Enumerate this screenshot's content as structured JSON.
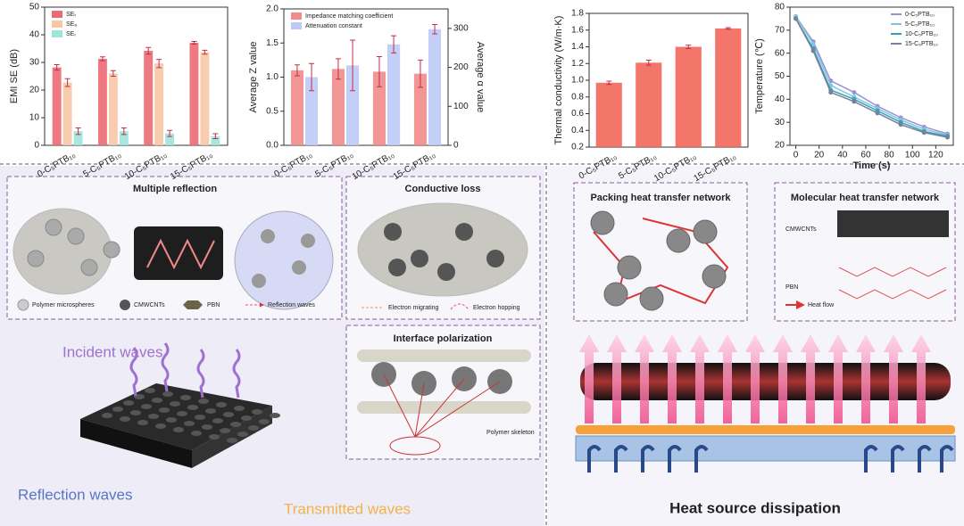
{
  "chart_data": [
    {
      "type": "bar",
      "y_label": "EMI SE (dB)",
      "categories": [
        "0-C₅PTB₁₀",
        "5-C₅PTB₁₀",
        "10-C₅PTB₁₀",
        "15-C₅PTB₁₀"
      ],
      "series": [
        {
          "name": "SEₜ",
          "color": "#ec6a73",
          "values": [
            28.2,
            31.3,
            34.2,
            37.1
          ],
          "errors": [
            1.0,
            0.7,
            1.2,
            0.5
          ]
        },
        {
          "name": "SEₐ",
          "color": "#f7c6a5",
          "values": [
            22.7,
            26.0,
            29.6,
            33.7
          ],
          "errors": [
            1.4,
            1.0,
            1.5,
            0.7
          ]
        },
        {
          "name": "SEᵣ",
          "color": "#9ee3dd",
          "values": [
            5.1,
            5.1,
            4.3,
            3.3
          ],
          "errors": [
            1.2,
            1.2,
            1.1,
            0.9
          ]
        }
      ],
      "ylim": [
        0,
        50
      ],
      "yticks": [
        0,
        10,
        20,
        30,
        40,
        50
      ],
      "legend": "upper left"
    },
    {
      "type": "bar",
      "y_label": "Average Z value",
      "y2_label": "Average α value",
      "categories": [
        "0-C₅PTB₁₀",
        "5-C₅PTB₁₀",
        "10-C₅PTB₁₀",
        "15-C₅PTB₁₀"
      ],
      "series": [
        {
          "name": "Impedance matching coefficient",
          "color": "#f28b8b",
          "values": [
            1.1,
            1.12,
            1.08,
            1.05
          ],
          "errors": [
            0.08,
            0.15,
            0.22,
            0.2
          ]
        },
        {
          "name": "Attenuation constant",
          "color": "#bccaf5",
          "axis": "y2",
          "values": [
            175,
            205,
            259,
            298
          ],
          "errors": [
            35,
            65,
            22,
            12
          ]
        }
      ],
      "ylim": [
        0,
        2.0
      ],
      "yticks": [
        {
          "value": 0,
          "label": "0.0"
        },
        0.5,
        {
          "value": 1,
          "label": "1.0"
        },
        1.5,
        {
          "value": 2,
          "label": "2.0"
        }
      ],
      "y2lim": [
        0,
        350
      ],
      "y2ticks": [
        0,
        100,
        200,
        300
      ],
      "legend": "upper left"
    },
    {
      "type": "bar",
      "y_label": "Thermal conductivity (W/m·K)",
      "categories": [
        "0-C₅PTB₁₀",
        "5-C₅PTB₁₀",
        "10-C₅PTB₁₀",
        "15-C₅PTB₁₀"
      ],
      "series": [
        {
          "color": "#f3665a",
          "values": [
            0.97,
            1.21,
            1.4,
            1.62
          ],
          "errors": [
            0.02,
            0.03,
            0.02,
            0.01
          ]
        }
      ],
      "ylim": [
        0.2,
        1.8
      ],
      "yticks": [
        0.2,
        0.4,
        0.6,
        0.8,
        {
          "value": 1,
          "label": "1.0"
        },
        1.2,
        1.4,
        1.6,
        1.8
      ]
    },
    {
      "type": "line",
      "x_label": "Time (s)",
      "y_label": "Temperature (℃)",
      "x": [
        0,
        15,
        30,
        50,
        70,
        90,
        110,
        130
      ],
      "series": [
        {
          "name": "0-C₅PTB₁₀",
          "color": "#9b8fd6",
          "values": [
            76,
            65,
            48,
            43,
            37,
            32,
            28,
            25
          ]
        },
        {
          "name": "5-C₅PTB₁₀",
          "color": "#7fc6e0",
          "values": [
            76,
            64,
            46,
            41,
            36,
            31,
            27,
            24.5
          ]
        },
        {
          "name": "10-C₅PTB₁₀",
          "color": "#3aa0b5",
          "values": [
            75,
            62,
            44,
            40,
            35,
            30,
            26,
            24
          ]
        },
        {
          "name": "15-C₅PTB₁₀",
          "color": "#7a7f9a",
          "values": [
            75,
            61,
            43,
            39,
            34,
            29,
            25.5,
            23.5
          ]
        }
      ],
      "xlim": [
        -5,
        135
      ],
      "xticks": [
        0,
        20,
        40,
        60,
        80,
        100,
        120
      ],
      "ylim": [
        20,
        80
      ],
      "yticks": [
        20,
        30,
        40,
        50,
        60,
        70,
        80
      ],
      "legend": "upper right"
    }
  ],
  "diagram": {
    "reflection": {
      "title": "Multiple reflection",
      "legend": [
        "Polymer microspheres",
        "CMWCNTs",
        "PBN",
        "Reflection waves"
      ]
    },
    "conduction": {
      "title": "Conductive loss",
      "legend": [
        "Electron migrating",
        "Electron hopping"
      ]
    },
    "polarization": {
      "title": "Interface polarization",
      "label": "Polymer skeleton"
    },
    "waves": {
      "incident": "Incident waves",
      "reflected": "Reflection waves",
      "transmitted": "Transmitted waves"
    },
    "packing": {
      "title": "Packing heat transfer network"
    },
    "molecular": {
      "title": "Molecular heat transfer network",
      "labels": [
        "CMWCNTs",
        "PBN",
        "Heat flow"
      ]
    },
    "caption": "Heat source dissipation"
  }
}
